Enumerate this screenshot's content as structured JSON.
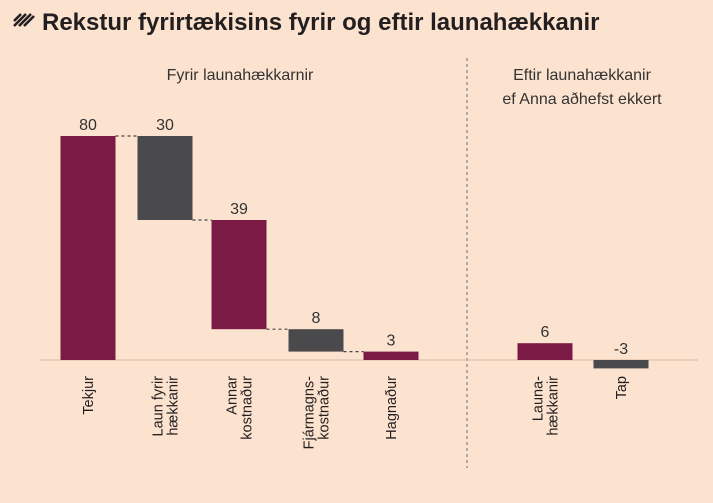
{
  "chart_data": {
    "type": "bar",
    "title": "Rekstur fyrirtækisins fyrir og eftir launahækkanir",
    "colors": {
      "positive": "#7a1a45",
      "cost": "#4a4a4c",
      "background": "#fce3cf",
      "title_icon": "#231f20"
    },
    "panels": [
      {
        "subtitle": [
          "Fyrir launahækkarnir"
        ],
        "bars": [
          {
            "category": [
              "Tekjur"
            ],
            "value": 80,
            "label": "80",
            "base": 0,
            "top": 80,
            "color": "positive"
          },
          {
            "category": [
              "Laun fyrir",
              "hækkanir"
            ],
            "value": 30,
            "label": "30",
            "base": 50,
            "top": 80,
            "color": "cost"
          },
          {
            "category": [
              "Annar",
              "kostnaður"
            ],
            "value": 39,
            "label": "39",
            "base": 11,
            "top": 50,
            "color": "positive"
          },
          {
            "category": [
              "Fjármagns-",
              "kostnaður"
            ],
            "value": 8,
            "label": "8",
            "base": 3,
            "top": 11,
            "color": "cost"
          },
          {
            "category": [
              "Hagnaður"
            ],
            "value": 3,
            "label": "3",
            "base": 0,
            "top": 3,
            "color": "positive"
          }
        ]
      },
      {
        "subtitle": [
          "Eftir launahækkanir",
          "ef Anna aðhefst ekkert"
        ],
        "bars": [
          {
            "category": [
              "Launa-",
              "hækkanir"
            ],
            "value": 6,
            "label": "6",
            "base": 0,
            "top": 6,
            "color": "positive"
          },
          {
            "category": [
              "Tap"
            ],
            "value": -3,
            "label": "-3",
            "base": -3,
            "top": 0,
            "color": "cost"
          }
        ]
      }
    ],
    "ylim": [
      -3,
      80
    ]
  }
}
